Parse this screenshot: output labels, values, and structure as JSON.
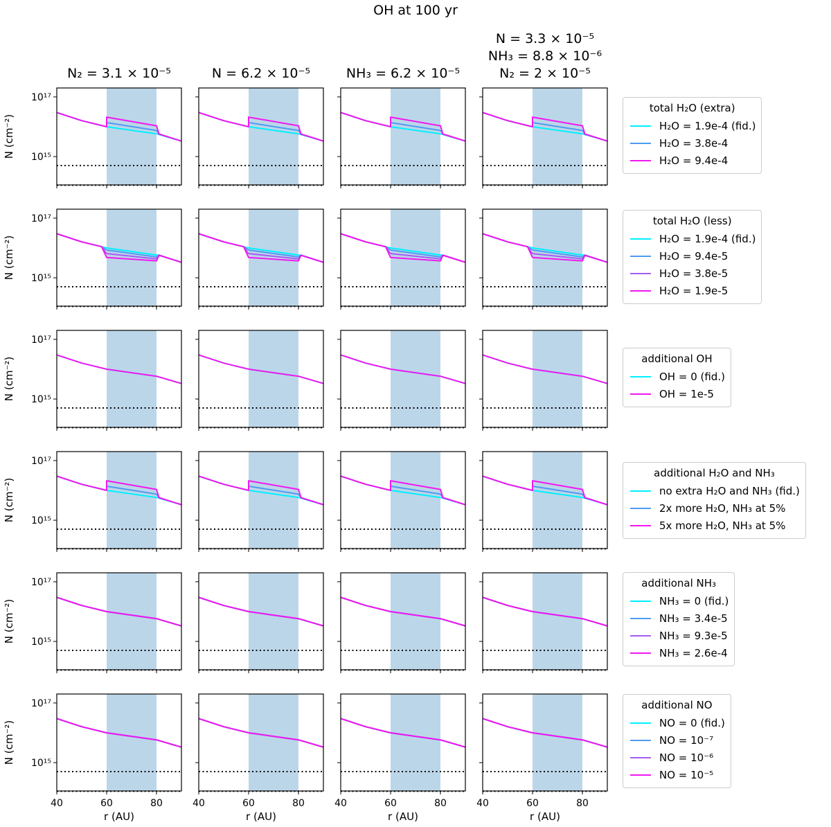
{
  "figure_title": "OH at 100 yr",
  "column_titles": [
    "N₂ = 3.1 × 10⁻⁵",
    "N = 6.2 × 10⁻⁵",
    "NH₃ = 6.2 × 10⁻⁵",
    "N = 3.3 × 10⁻⁵\nNH₃ = 8.8 × 10⁻⁶\nN₂ = 2 × 10⁻⁵"
  ],
  "colors": {
    "cyan": "#00f0ff",
    "blue": "#4f9bf1",
    "violet": "#a55cf3",
    "magenta": "#f018f0",
    "band": "#bcd6e9",
    "threshold": "#000000"
  },
  "chart_data": {
    "type": "line",
    "grid": false,
    "xlabel": "r (AU)",
    "ylabel": "N (cm⁻²)",
    "xlim": [
      40,
      90
    ],
    "ylim_log10": [
      14.05,
      17.3
    ],
    "xticks": [
      40,
      60,
      80
    ],
    "yticks": [
      {
        "value": 1000000000000000.0,
        "label": "10¹⁵"
      },
      {
        "value": 1e+17,
        "label": "10¹⁷"
      }
    ],
    "shaded_band_x": [
      60,
      80
    ],
    "threshold_lines": [
      500000000000000.0,
      110000000000000.0
    ],
    "rows": [
      {
        "legend_title": "total H₂O (extra)",
        "show_column_4": true,
        "series": [
          {
            "name": "H₂O = 1.9e-4 (fid.)",
            "color": "cyan",
            "x": [
              40,
              50,
              60,
              70,
              80,
              90
            ],
            "y": [
              3e+16,
              1.6e+16,
              1e+16,
              7600000000000000.0,
              5800000000000000.0,
              3300000000000000.0
            ]
          },
          {
            "name": "H₂O = 3.8e-4",
            "color": "blue",
            "x": [
              40,
              50,
              60,
              60,
              80,
              81,
              90
            ],
            "y": [
              3e+16,
              1.6e+16,
              1e+16,
              1.38e+16,
              7500000000000000.0,
              5700000000000000.0,
              3300000000000000.0
            ]
          },
          {
            "name": "H₂O = 9.4e-4",
            "color": "magenta",
            "x": [
              40,
              50,
              60,
              60,
              80,
              81,
              90
            ],
            "y": [
              3e+16,
              1.6e+16,
              1e+16,
              2.1e+16,
              1.08e+16,
              5700000000000000.0,
              3300000000000000.0
            ]
          }
        ]
      },
      {
        "legend_title": "total H₂O (less)",
        "show_column_4": true,
        "series": [
          {
            "name": "H₂O = 1.9e-4 (fid.)",
            "color": "cyan",
            "x": [
              40,
              50,
              58,
              60,
              70,
              80,
              81,
              90
            ],
            "y": [
              3e+16,
              1.6e+16,
              1.1e+16,
              1e+16,
              7600000000000000.0,
              5800000000000000.0,
              5800000000000000.0,
              3300000000000000.0
            ]
          },
          {
            "name": "H₂O = 9.4e-5",
            "color": "blue",
            "x": [
              40,
              50,
              58,
              60,
              80,
              81,
              90
            ],
            "y": [
              3e+16,
              1.6e+16,
              1.1e+16,
              8500000000000000.0,
              5000000000000000.0,
              5700000000000000.0,
              3300000000000000.0
            ]
          },
          {
            "name": "H₂O = 3.8e-5",
            "color": "violet",
            "x": [
              40,
              50,
              58,
              60,
              80,
              81,
              90
            ],
            "y": [
              3e+16,
              1.6e+16,
              1.1e+16,
              6500000000000000.0,
              4300000000000000.0,
              5700000000000000.0,
              3300000000000000.0
            ]
          },
          {
            "name": "H₂O = 1.9e-5",
            "color": "magenta",
            "x": [
              40,
              50,
              58,
              60,
              80,
              81,
              90
            ],
            "y": [
              3e+16,
              1.6e+16,
              1.1e+16,
              4800000000000000.0,
              3700000000000000.0,
              5700000000000000.0,
              3300000000000000.0
            ]
          }
        ]
      },
      {
        "legend_title": "additional OH",
        "show_column_4": true,
        "series": [
          {
            "name": "OH = 0 (fid.)",
            "color": "cyan",
            "x": [
              40,
              50,
              60,
              70,
              80,
              90
            ],
            "y": [
              3e+16,
              1.6e+16,
              1e+16,
              7600000000000000.0,
              5800000000000000.0,
              3300000000000000.0
            ]
          },
          {
            "name": "OH = 1e-5",
            "color": "magenta",
            "x": [
              40,
              50,
              60,
              70,
              80,
              90
            ],
            "y": [
              3e+16,
              1.6e+16,
              1e+16,
              7600000000000000.0,
              5800000000000000.0,
              3300000000000000.0
            ]
          }
        ]
      },
      {
        "legend_title": "additional H₂O and NH₃",
        "show_column_4": true,
        "series": [
          {
            "name": "no extra H₂O and NH₃ (fid.)",
            "color": "cyan",
            "x": [
              40,
              50,
              60,
              70,
              80,
              90
            ],
            "y": [
              3e+16,
              1.6e+16,
              1e+16,
              7600000000000000.0,
              5800000000000000.0,
              3300000000000000.0
            ]
          },
          {
            "name": "2x more H₂O, NH₃ at 5%",
            "color": "blue",
            "x": [
              40,
              50,
              60,
              60,
              80,
              81,
              90
            ],
            "y": [
              3e+16,
              1.6e+16,
              1e+16,
              1.38e+16,
              7500000000000000.0,
              5700000000000000.0,
              3300000000000000.0
            ]
          },
          {
            "name": "5x more H₂O, NH₃ at 5%",
            "color": "magenta",
            "x": [
              40,
              50,
              60,
              60,
              80,
              81,
              90
            ],
            "y": [
              3e+16,
              1.6e+16,
              1e+16,
              2.1e+16,
              1.08e+16,
              5700000000000000.0,
              3300000000000000.0
            ]
          }
        ]
      },
      {
        "legend_title": "additional NH₃",
        "show_column_4": true,
        "series": [
          {
            "name": "NH₃ = 0 (fid.)",
            "color": "cyan",
            "x": [
              40,
              50,
              60,
              70,
              80,
              90
            ],
            "y": [
              3e+16,
              1.6e+16,
              1e+16,
              7600000000000000.0,
              5800000000000000.0,
              3300000000000000.0
            ]
          },
          {
            "name": "NH₃ = 3.4e-5",
            "color": "blue",
            "x": [
              40,
              50,
              60,
              70,
              80,
              90
            ],
            "y": [
              3e+16,
              1.6e+16,
              1e+16,
              7600000000000000.0,
              5800000000000000.0,
              3300000000000000.0
            ]
          },
          {
            "name": "NH₃ = 9.3e-5",
            "color": "violet",
            "x": [
              40,
              50,
              60,
              70,
              80,
              90
            ],
            "y": [
              3e+16,
              1.6e+16,
              1e+16,
              7600000000000000.0,
              5800000000000000.0,
              3300000000000000.0
            ]
          },
          {
            "name": "NH₃ = 2.6e-4",
            "color": "magenta",
            "x": [
              40,
              50,
              60,
              70,
              80,
              90
            ],
            "y": [
              3e+16,
              1.6e+16,
              1e+16,
              7600000000000000.0,
              5800000000000000.0,
              3300000000000000.0
            ]
          }
        ]
      },
      {
        "legend_title": "additional NO",
        "show_column_4": true,
        "series": [
          {
            "name": "NO = 0 (fid.)",
            "color": "cyan",
            "x": [
              40,
              50,
              60,
              70,
              80,
              90
            ],
            "y": [
              3e+16,
              1.6e+16,
              1e+16,
              7600000000000000.0,
              5800000000000000.0,
              3300000000000000.0
            ]
          },
          {
            "name": "NO = 10⁻⁷",
            "color": "blue",
            "x": [
              40,
              50,
              60,
              70,
              80,
              90
            ],
            "y": [
              3e+16,
              1.6e+16,
              1e+16,
              7600000000000000.0,
              5800000000000000.0,
              3300000000000000.0
            ]
          },
          {
            "name": "NO = 10⁻⁶",
            "color": "violet",
            "x": [
              40,
              50,
              60,
              70,
              80,
              90
            ],
            "y": [
              3e+16,
              1.6e+16,
              1e+16,
              7600000000000000.0,
              5800000000000000.0,
              3300000000000000.0
            ]
          },
          {
            "name": "NO = 10⁻⁵",
            "color": "magenta",
            "x": [
              40,
              50,
              60,
              70,
              80,
              90
            ],
            "y": [
              3e+16,
              1.6e+16,
              1e+16,
              7600000000000000.0,
              5800000000000000.0,
              3300000000000000.0
            ]
          }
        ]
      }
    ]
  }
}
